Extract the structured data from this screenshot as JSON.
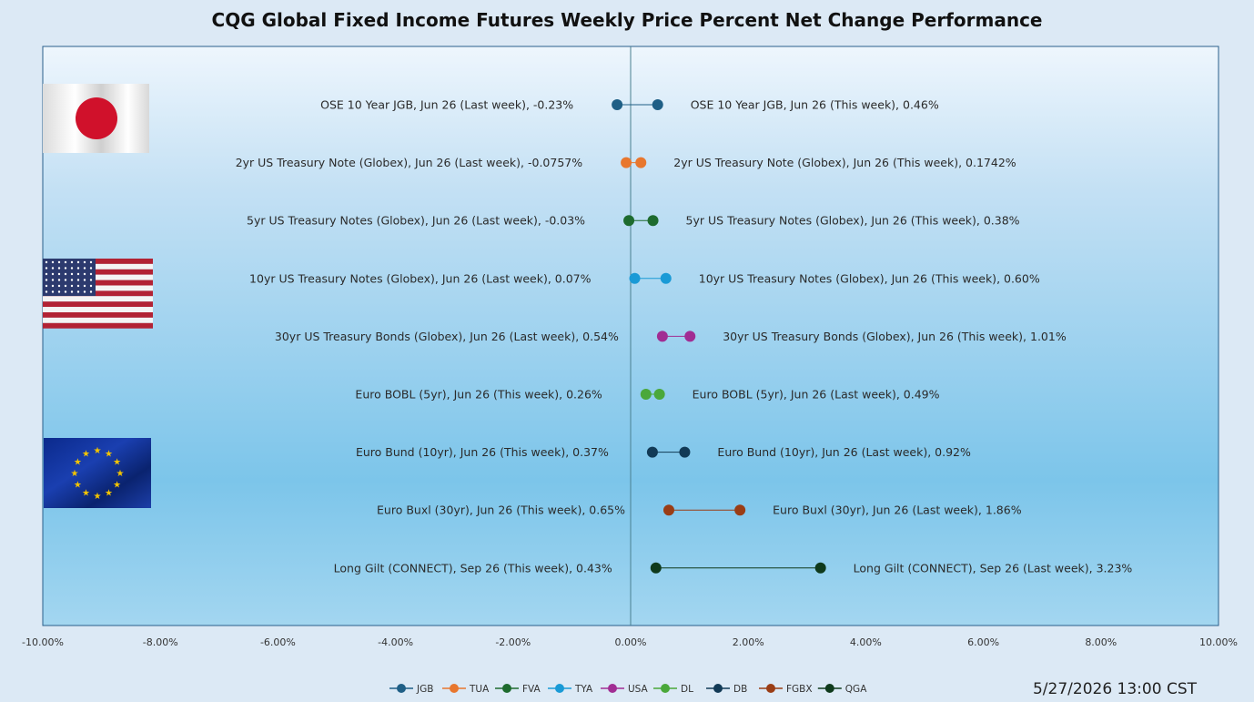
{
  "chart_data": {
    "type": "scatter",
    "title": "CQG Global Fixed Income Futures Weekly Price Percent Net Change Performance",
    "xlim": [
      -10,
      10
    ],
    "x_ticks": [
      "-10.00%",
      "-8.00%",
      "-6.00%",
      "-4.00%",
      "-2.00%",
      "0.00%",
      "2.00%",
      "4.00%",
      "6.00%",
      "8.00%",
      "10.00%"
    ],
    "x_tick_values": [
      -10,
      -8,
      -6,
      -4,
      -2,
      0,
      2,
      4,
      6,
      8,
      10
    ],
    "grid": false,
    "legend_position": "bottom",
    "series": [
      {
        "name": "JGB",
        "color": "#1f5f86",
        "points": [
          {
            "x": -0.23,
            "label": "OSE 10 Year JGB, Jun 26 (Last week), -0.23%"
          },
          {
            "x": 0.46,
            "label": "OSE 10 Year JGB, Jun 26 (This week), 0.46%"
          }
        ]
      },
      {
        "name": "TUA",
        "color": "#e8772e",
        "points": [
          {
            "x": -0.0757,
            "label": "2yr US Treasury Note (Globex), Jun 26 (Last week), -0.0757%"
          },
          {
            "x": 0.1742,
            "label": "2yr US Treasury Note (Globex), Jun 26 (This week), 0.1742%"
          }
        ]
      },
      {
        "name": "FVA",
        "color": "#1e6b2e",
        "points": [
          {
            "x": -0.03,
            "label": "5yr US Treasury Notes (Globex), Jun 26 (Last week), -0.03%"
          },
          {
            "x": 0.38,
            "label": "5yr US Treasury Notes (Globex), Jun 26 (This week), 0.38%"
          }
        ]
      },
      {
        "name": "TYA",
        "color": "#1a9ad6",
        "points": [
          {
            "x": 0.07,
            "label": "10yr US Treasury Notes (Globex), Jun 26 (Last week), 0.07%"
          },
          {
            "x": 0.6,
            "label": "10yr US Treasury Notes (Globex), Jun 26 (This week), 0.60%"
          }
        ]
      },
      {
        "name": "USA",
        "color": "#a12d93",
        "points": [
          {
            "x": 0.54,
            "label": "30yr US Treasury Bonds (Globex), Jun 26 (Last week), 0.54%"
          },
          {
            "x": 1.01,
            "label": "30yr US Treasury Bonds (Globex), Jun 26 (This week), 1.01%"
          }
        ]
      },
      {
        "name": "DL",
        "color": "#4aa83a",
        "points": [
          {
            "x": 0.26,
            "label": "Euro BOBL (5yr), Jun 26 (This week), 0.26%"
          },
          {
            "x": 0.49,
            "label": "Euro BOBL (5yr), Jun 26 (Last week), 0.49%"
          }
        ]
      },
      {
        "name": "DB",
        "color": "#123a56",
        "points": [
          {
            "x": 0.37,
            "label": "Euro Bund (10yr), Jun 26 (This week), 0.37%"
          },
          {
            "x": 0.92,
            "label": "Euro Bund (10yr), Jun 26 (Last week), 0.92%"
          }
        ]
      },
      {
        "name": "FGBX",
        "color": "#9a3d15",
        "points": [
          {
            "x": 0.65,
            "label": "Euro Buxl (30yr), Jun 26 (This week), 0.65%"
          },
          {
            "x": 1.86,
            "label": "Euro Buxl (30yr), Jun 26 (Last week), 1.86%"
          }
        ]
      },
      {
        "name": "QGA",
        "color": "#0f3a1c",
        "points": [
          {
            "x": 0.43,
            "label": "Long Gilt (CONNECT), Sep 26 (This week), 0.43%"
          },
          {
            "x": 3.23,
            "label": "Long Gilt (CONNECT), Sep 26 (Last week), 3.23%"
          }
        ]
      }
    ],
    "flags": [
      "japan-flag-icon",
      "usa-flag-icon",
      "eu-flag-icon"
    ],
    "timestamp": "5/27/2026 13:00 CST"
  }
}
